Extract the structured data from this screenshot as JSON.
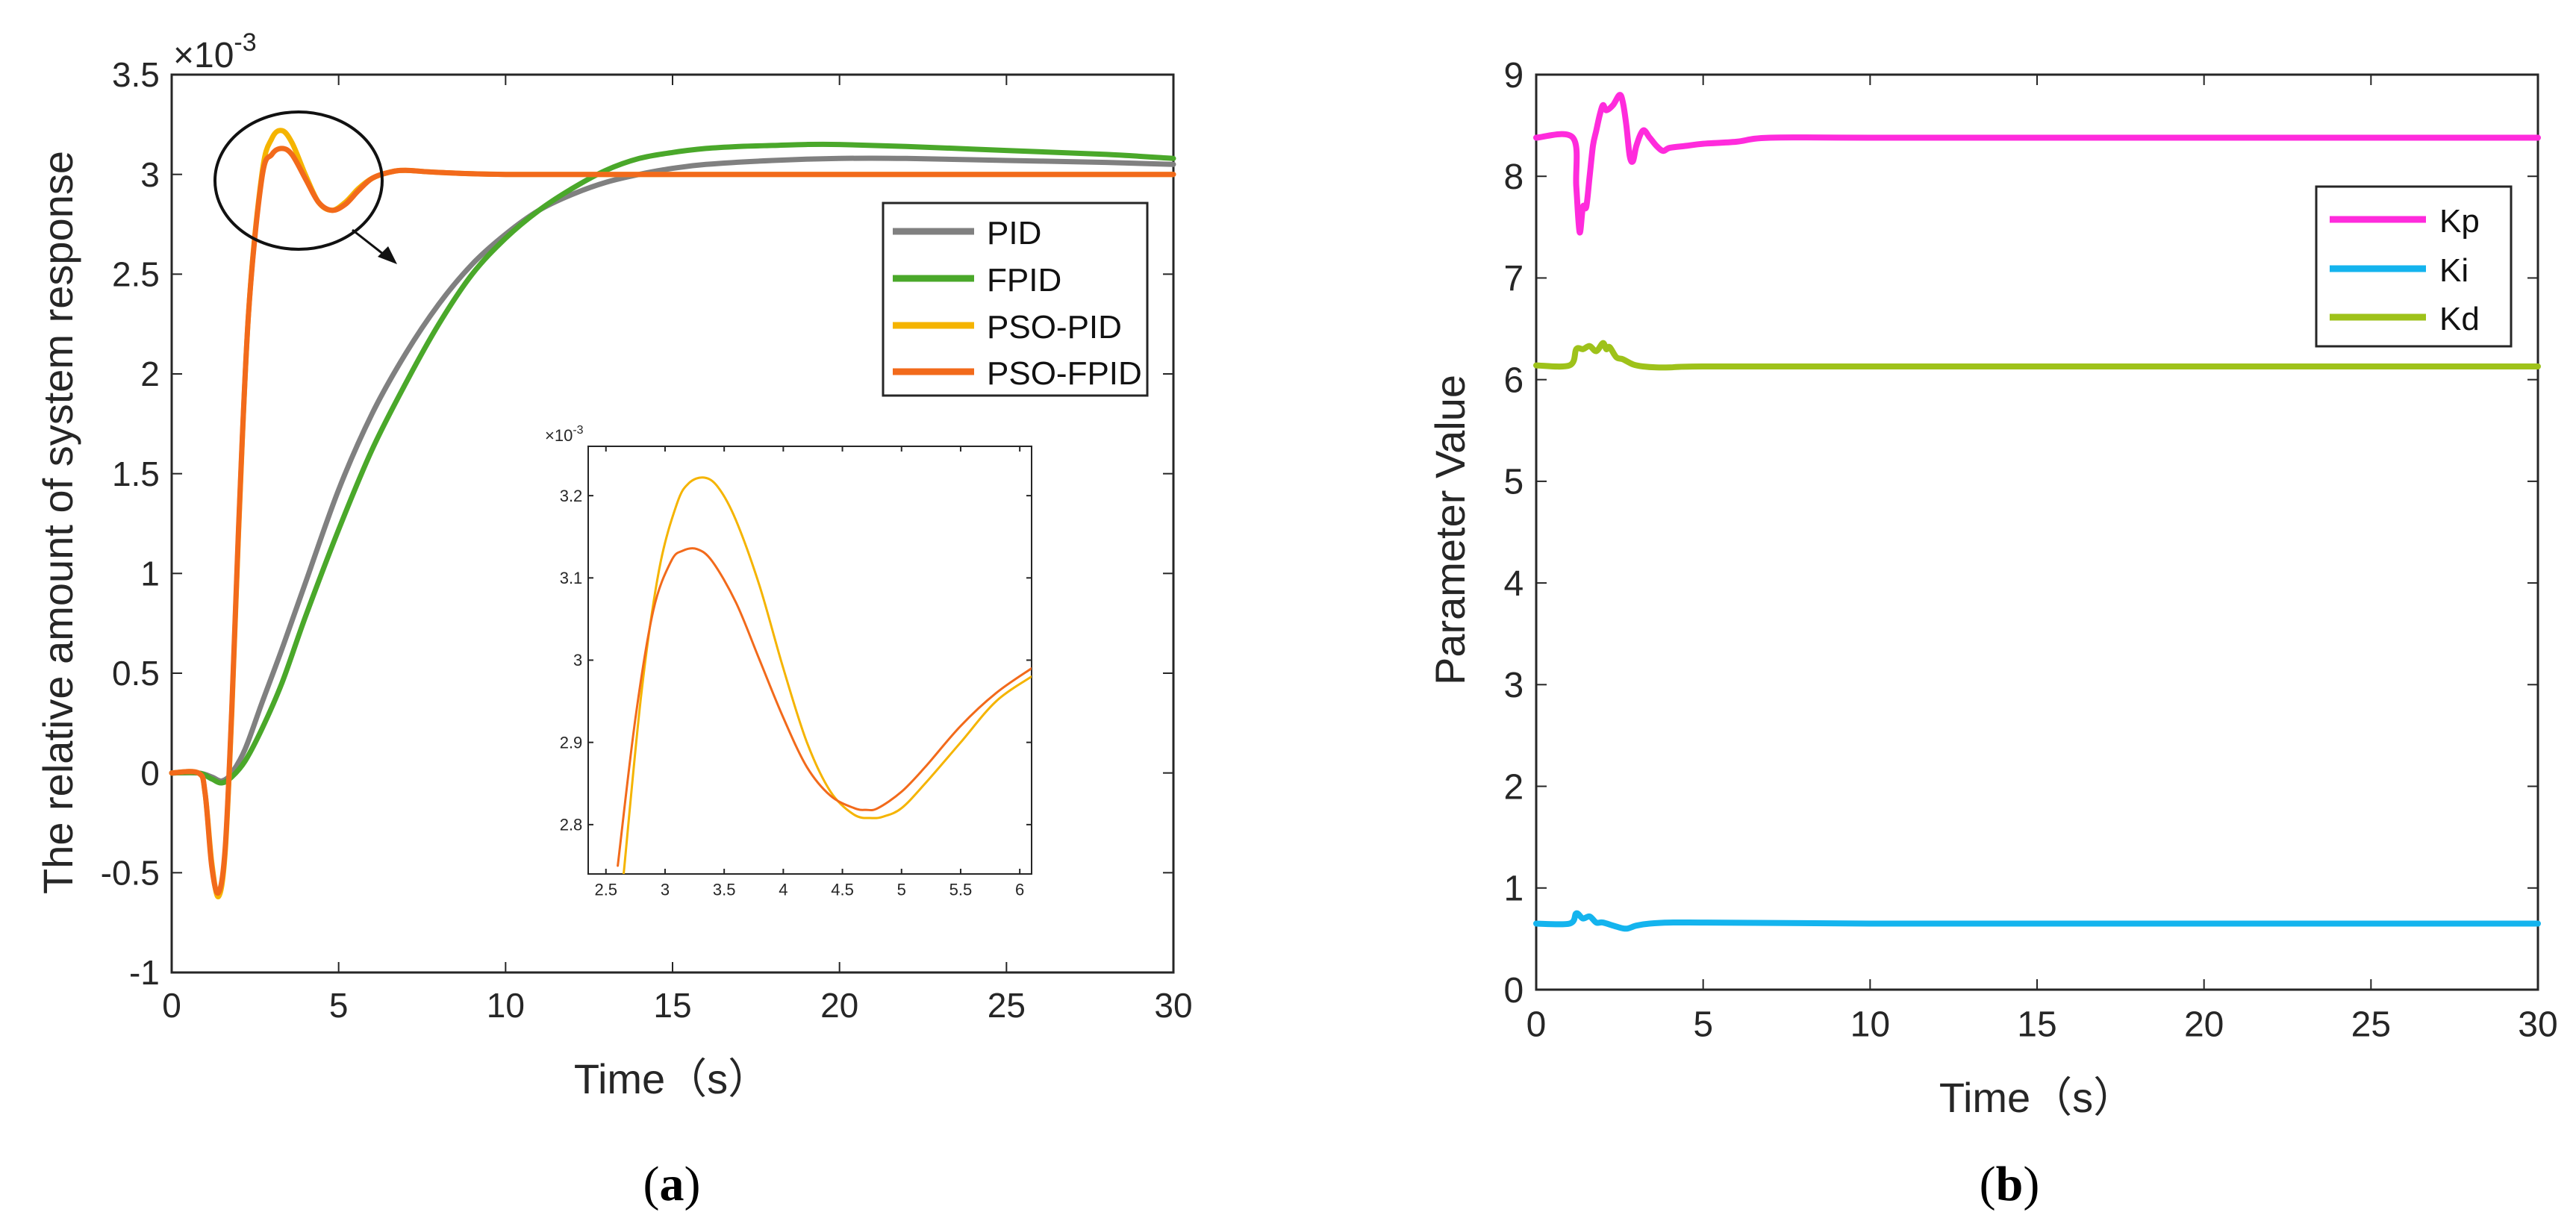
{
  "chart_data": [
    {
      "id": "a",
      "type": "line",
      "caption_open": "(",
      "caption_letter": "a",
      "caption_close": ")",
      "xlabel": "Time（s）",
      "ylabel": "The relative amount of system response",
      "y_multiplier": "×10",
      "y_exponent": "-3",
      "xlim": [
        0,
        30
      ],
      "ylim": [
        -1,
        3.5
      ],
      "xticks": [
        0,
        5,
        10,
        15,
        20,
        25,
        30
      ],
      "yticks": [
        -1,
        -0.5,
        0,
        0.5,
        1,
        1.5,
        2,
        2.5,
        3,
        3.5
      ],
      "legend_position": "upper-right",
      "series": [
        {
          "name": "PID",
          "color": "#808080",
          "x": [
            0,
            0.8,
            1.2,
            1.5,
            1.8,
            2.2,
            2.7,
            3.3,
            4,
            5,
            6,
            7,
            8,
            9,
            10,
            11,
            12,
            13,
            14,
            15,
            16,
            18,
            20,
            22,
            25,
            28,
            30
          ],
          "y": [
            0,
            0,
            -0.02,
            -0.04,
            0,
            0.12,
            0.35,
            0.62,
            0.95,
            1.42,
            1.8,
            2.1,
            2.35,
            2.55,
            2.7,
            2.82,
            2.9,
            2.96,
            3.0,
            3.03,
            3.05,
            3.07,
            3.08,
            3.08,
            3.07,
            3.06,
            3.05
          ]
        },
        {
          "name": "FPID",
          "color": "#4aa82a",
          "x": [
            0,
            0.8,
            1.2,
            1.5,
            1.8,
            2.2,
            2.7,
            3.3,
            4,
            5,
            6,
            7,
            8,
            9,
            10,
            11,
            12,
            13,
            14,
            15,
            16,
            17,
            18,
            19,
            20,
            22,
            25,
            28,
            30
          ],
          "y": [
            0,
            0,
            -0.03,
            -0.05,
            -0.02,
            0.06,
            0.22,
            0.45,
            0.78,
            1.22,
            1.62,
            1.95,
            2.25,
            2.5,
            2.68,
            2.82,
            2.93,
            3.02,
            3.08,
            3.11,
            3.13,
            3.14,
            3.145,
            3.15,
            3.15,
            3.14,
            3.12,
            3.1,
            3.08
          ]
        },
        {
          "name": "PSO-PID",
          "color": "#f5b400",
          "x": [
            0,
            0.8,
            1.0,
            1.2,
            1.4,
            1.6,
            1.8,
            2.0,
            2.3,
            2.7,
            3.0,
            3.3,
            3.6,
            4.0,
            4.4,
            4.8,
            5.2,
            5.6,
            6.0,
            6.5,
            7,
            8,
            10,
            15,
            20,
            25,
            30
          ],
          "y": [
            0,
            0,
            -0.1,
            -0.45,
            -0.62,
            -0.4,
            0.3,
            1.2,
            2.3,
            3.0,
            3.18,
            3.22,
            3.16,
            3.0,
            2.86,
            2.82,
            2.86,
            2.93,
            2.98,
            3.01,
            3.02,
            3.01,
            3.0,
            3.0,
            3.0,
            3.0,
            3.0
          ]
        },
        {
          "name": "PSO-FPID",
          "color": "#f26a1b",
          "x": [
            0,
            0.8,
            1.0,
            1.2,
            1.4,
            1.6,
            1.8,
            2.0,
            2.3,
            2.7,
            3.0,
            3.3,
            3.6,
            4.0,
            4.4,
            4.8,
            5.2,
            5.6,
            6.0,
            6.5,
            7,
            8,
            10,
            15,
            20,
            25,
            30
          ],
          "y": [
            0,
            0,
            -0.1,
            -0.47,
            -0.6,
            -0.38,
            0.32,
            1.22,
            2.3,
            2.98,
            3.1,
            3.13,
            3.1,
            2.98,
            2.86,
            2.82,
            2.85,
            2.92,
            2.98,
            3.01,
            3.02,
            3.01,
            3.0,
            3.0,
            3.0,
            3.0,
            3.0
          ]
        }
      ],
      "inset": {
        "multiplier": "×10",
        "exponent": "-3",
        "xlim": [
          2.35,
          6.1
        ],
        "ylim": [
          2.74,
          3.26
        ],
        "xticks": [
          2.5,
          3,
          3.5,
          4,
          4.5,
          5,
          5.5,
          6
        ],
        "yticks": [
          2.8,
          2.9,
          3,
          3.1,
          3.2
        ],
        "series": [
          {
            "name": "PSO-PID",
            "color": "#f5b400",
            "x": [
              2.65,
              2.8,
              2.95,
              3.1,
              3.2,
              3.33,
              3.45,
              3.6,
              3.8,
              4.0,
              4.2,
              4.4,
              4.6,
              4.75,
              4.85,
              5.0,
              5.2,
              5.5,
              5.8,
              6.1
            ],
            "y": [
              2.74,
              2.96,
              3.11,
              3.19,
              3.215,
              3.222,
              3.21,
              3.17,
              3.09,
              2.99,
              2.9,
              2.84,
              2.812,
              2.808,
              2.81,
              2.82,
              2.85,
              2.9,
              2.95,
              2.98
            ]
          },
          {
            "name": "PSO-FPID",
            "color": "#f26a1b",
            "x": [
              2.6,
              2.75,
              2.9,
              3.05,
              3.15,
              3.27,
              3.4,
              3.6,
              3.8,
              4.0,
              4.2,
              4.4,
              4.6,
              4.7,
              4.8,
              5.0,
              5.2,
              5.5,
              5.8,
              6.1
            ],
            "y": [
              2.75,
              2.93,
              3.06,
              3.12,
              3.133,
              3.135,
              3.12,
              3.07,
              3.0,
              2.93,
              2.87,
              2.835,
              2.82,
              2.818,
              2.82,
              2.84,
              2.87,
              2.92,
              2.96,
              2.99
            ]
          }
        ]
      }
    },
    {
      "id": "b",
      "type": "line",
      "caption_open": "(",
      "caption_letter": "b",
      "caption_close": ")",
      "xlabel": "Time（s）",
      "ylabel": "Parameter Value",
      "xlim": [
        0,
        30
      ],
      "ylim": [
        0,
        9
      ],
      "xticks": [
        0,
        5,
        10,
        15,
        20,
        25,
        30
      ],
      "yticks": [
        0,
        1,
        2,
        3,
        4,
        5,
        6,
        7,
        8,
        9
      ],
      "legend_position": "upper-right",
      "series": [
        {
          "name": "Kp",
          "color": "#ff2bdc",
          "x": [
            0,
            1.1,
            1.2,
            1.3,
            1.4,
            1.5,
            1.6,
            1.7,
            1.8,
            1.9,
            2.0,
            2.1,
            2.3,
            2.5,
            2.6,
            2.7,
            2.8,
            2.9,
            3.0,
            3.2,
            3.4,
            3.6,
            3.8,
            4.0,
            4.5,
            5,
            6,
            7,
            10,
            20,
            30
          ],
          "y": [
            8.38,
            8.38,
            7.9,
            7.45,
            7.7,
            7.7,
            8.0,
            8.3,
            8.45,
            8.6,
            8.7,
            8.65,
            8.7,
            8.8,
            8.72,
            8.5,
            8.2,
            8.15,
            8.3,
            8.45,
            8.38,
            8.3,
            8.25,
            8.28,
            8.3,
            8.32,
            8.34,
            8.38,
            8.38,
            8.38,
            8.38
          ]
        },
        {
          "name": "Ki",
          "color": "#14b4ee",
          "x": [
            0,
            1.0,
            1.2,
            1.4,
            1.6,
            1.8,
            2.0,
            2.4,
            2.7,
            3.0,
            3.4,
            4,
            5,
            10,
            20,
            30
          ],
          "y": [
            0.65,
            0.65,
            0.75,
            0.7,
            0.72,
            0.66,
            0.66,
            0.62,
            0.6,
            0.63,
            0.65,
            0.66,
            0.66,
            0.65,
            0.65,
            0.65
          ]
        },
        {
          "name": "Kd",
          "color": "#9ec21a",
          "x": [
            0,
            1.0,
            1.2,
            1.4,
            1.6,
            1.8,
            2.0,
            2.1,
            2.2,
            2.4,
            2.6,
            2.9,
            3.2,
            3.6,
            4.0,
            5,
            10,
            20,
            30
          ],
          "y": [
            6.14,
            6.14,
            6.3,
            6.3,
            6.33,
            6.28,
            6.36,
            6.3,
            6.32,
            6.22,
            6.2,
            6.15,
            6.13,
            6.12,
            6.12,
            6.13,
            6.13,
            6.13,
            6.13
          ]
        }
      ]
    }
  ]
}
